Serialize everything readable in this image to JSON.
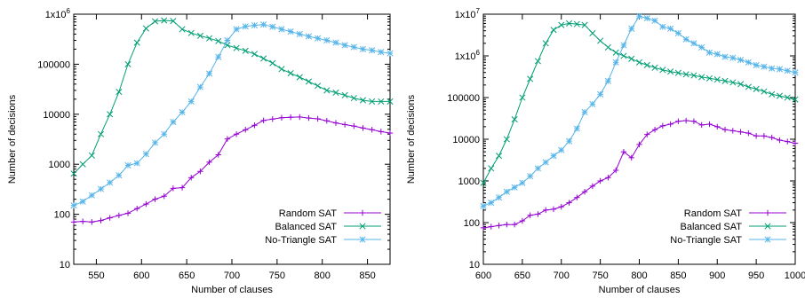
{
  "chart_data": [
    {
      "type": "line",
      "scale": "log-y",
      "xlabel": "Number of clauses",
      "ylabel": "Number of decisions",
      "xlim": [
        525,
        875
      ],
      "ylim": [
        10,
        1000000
      ],
      "xticks": [
        550,
        600,
        650,
        700,
        750,
        800,
        850
      ],
      "yticks": [
        {
          "value": 10,
          "label": "10"
        },
        {
          "value": 100,
          "label": "100"
        },
        {
          "value": 1000,
          "label": "1000"
        },
        {
          "value": 10000,
          "label": "10000"
        },
        {
          "value": 100000,
          "label": "100000"
        },
        {
          "value": 1000000,
          "label": "1x10^6"
        }
      ],
      "grid": false,
      "legend_position": "bottom-right",
      "series": [
        {
          "name": "Random SAT",
          "color": "#9400d3",
          "marker": "plus",
          "x": [
            525,
            535,
            545,
            555,
            565,
            575,
            585,
            595,
            605,
            615,
            625,
            635,
            645,
            655,
            665,
            675,
            685,
            695,
            705,
            715,
            725,
            735,
            745,
            755,
            765,
            775,
            785,
            795,
            805,
            815,
            825,
            835,
            845,
            855,
            865,
            875
          ],
          "y": [
            70,
            72,
            70,
            75,
            85,
            95,
            105,
            130,
            160,
            200,
            230,
            330,
            340,
            540,
            720,
            1100,
            1550,
            3200,
            4000,
            4900,
            6000,
            7500,
            8000,
            8500,
            8700,
            8800,
            8400,
            8100,
            7400,
            6700,
            6200,
            5800,
            5300,
            4900,
            4500,
            4200
          ]
        },
        {
          "name": "Balanced SAT",
          "color": "#009e73",
          "marker": "cross",
          "x": [
            525,
            535,
            545,
            555,
            565,
            575,
            585,
            595,
            605,
            615,
            625,
            635,
            645,
            655,
            665,
            675,
            685,
            695,
            705,
            715,
            725,
            735,
            745,
            755,
            765,
            775,
            785,
            795,
            805,
            815,
            825,
            835,
            845,
            855,
            865,
            875
          ],
          "y": [
            650,
            1000,
            1500,
            4000,
            10000,
            28000,
            100000,
            270000,
            520000,
            720000,
            750000,
            730000,
            500000,
            420000,
            370000,
            330000,
            290000,
            240000,
            210000,
            185000,
            160000,
            130000,
            105000,
            80000,
            66000,
            55000,
            45000,
            37000,
            30000,
            27000,
            24000,
            21000,
            19000,
            18000,
            18000,
            18000
          ]
        },
        {
          "name": "No-Triangle SAT",
          "color": "#56b4e9",
          "marker": "star",
          "x": [
            525,
            535,
            545,
            555,
            565,
            575,
            585,
            595,
            605,
            615,
            625,
            635,
            645,
            655,
            665,
            675,
            685,
            695,
            705,
            715,
            725,
            735,
            745,
            755,
            765,
            775,
            785,
            795,
            805,
            815,
            825,
            835,
            845,
            855,
            865,
            875
          ],
          "y": [
            150,
            180,
            240,
            320,
            430,
            600,
            950,
            1050,
            1600,
            2700,
            4000,
            7000,
            11000,
            18000,
            35000,
            65000,
            140000,
            300000,
            500000,
            570000,
            600000,
            620000,
            560000,
            500000,
            450000,
            400000,
            360000,
            330000,
            300000,
            270000,
            240000,
            220000,
            200000,
            190000,
            175000,
            165000
          ]
        }
      ]
    },
    {
      "type": "line",
      "scale": "log-y",
      "xlabel": "Number of clauses",
      "ylabel": "Number of decisions",
      "xlim": [
        600,
        1000
      ],
      "ylim": [
        10,
        10000000
      ],
      "xticks": [
        600,
        650,
        700,
        750,
        800,
        850,
        900,
        950,
        1000
      ],
      "yticks": [
        {
          "value": 10,
          "label": "10"
        },
        {
          "value": 100,
          "label": "100"
        },
        {
          "value": 1000,
          "label": "1000"
        },
        {
          "value": 10000,
          "label": "10000"
        },
        {
          "value": 100000,
          "label": "100000"
        },
        {
          "value": 1000000,
          "label": "1x10^6"
        },
        {
          "value": 10000000,
          "label": "1x10^7"
        }
      ],
      "grid": false,
      "legend_position": "bottom-right",
      "series": [
        {
          "name": "Random SAT",
          "color": "#9400d3",
          "marker": "plus",
          "x": [
            600,
            610,
            620,
            630,
            640,
            650,
            660,
            670,
            680,
            690,
            700,
            710,
            720,
            730,
            740,
            750,
            760,
            770,
            780,
            790,
            800,
            810,
            820,
            830,
            840,
            850,
            860,
            870,
            880,
            890,
            900,
            910,
            920,
            930,
            940,
            950,
            960,
            970,
            980,
            990,
            1000
          ],
          "y": [
            75,
            80,
            85,
            90,
            90,
            110,
            150,
            160,
            200,
            210,
            240,
            300,
            400,
            550,
            750,
            1000,
            1200,
            1800,
            5000,
            3600,
            7500,
            13000,
            17000,
            21000,
            23000,
            27000,
            28000,
            27000,
            22000,
            23000,
            20000,
            17000,
            16000,
            15000,
            14000,
            12000,
            12000,
            11000,
            9500,
            8800,
            8000
          ]
        },
        {
          "name": "Balanced SAT",
          "color": "#009e73",
          "marker": "cross",
          "x": [
            600,
            610,
            620,
            630,
            640,
            650,
            660,
            670,
            680,
            690,
            700,
            710,
            720,
            730,
            740,
            750,
            760,
            770,
            780,
            790,
            800,
            810,
            820,
            830,
            840,
            850,
            860,
            870,
            880,
            890,
            900,
            910,
            920,
            930,
            940,
            950,
            960,
            970,
            980,
            990,
            1000
          ],
          "y": [
            900,
            2000,
            4000,
            10000,
            30000,
            100000,
            280000,
            750000,
            2000000,
            4200000,
            5500000,
            6000000,
            5800000,
            5500000,
            3500000,
            2300000,
            1600000,
            1200000,
            1000000,
            850000,
            700000,
            600000,
            520000,
            460000,
            420000,
            390000,
            360000,
            340000,
            310000,
            290000,
            270000,
            250000,
            230000,
            210000,
            180000,
            160000,
            140000,
            120000,
            110000,
            100000,
            90000
          ]
        },
        {
          "name": "No-Triangle SAT",
          "color": "#56b4e9",
          "marker": "star",
          "x": [
            600,
            610,
            620,
            630,
            640,
            650,
            660,
            670,
            680,
            690,
            700,
            710,
            720,
            730,
            740,
            750,
            760,
            770,
            780,
            790,
            800,
            810,
            820,
            830,
            840,
            850,
            860,
            870,
            880,
            890,
            900,
            910,
            920,
            930,
            940,
            950,
            960,
            970,
            980,
            990,
            1000
          ],
          "y": [
            250,
            300,
            400,
            550,
            700,
            900,
            1300,
            2000,
            2800,
            4000,
            5500,
            9000,
            18000,
            45000,
            70000,
            120000,
            250000,
            700000,
            1800000,
            4500000,
            9000000,
            8000000,
            7000000,
            5000000,
            4500000,
            3500000,
            2500000,
            2000000,
            1600000,
            1200000,
            1100000,
            950000,
            900000,
            800000,
            700000,
            600000,
            550000,
            500000,
            480000,
            440000,
            400000
          ]
        }
      ]
    }
  ]
}
